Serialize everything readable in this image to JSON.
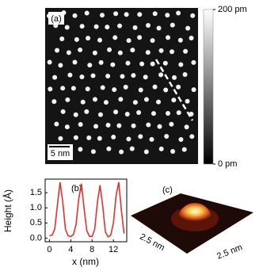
{
  "chart_data": [
    {
      "type": "image",
      "label": "(a)",
      "scale_bar": "5 nm",
      "clim": [
        0,
        200
      ],
      "colorbar_ticks": [
        {
          "value": 200,
          "label": "200 pm"
        },
        {
          "value": 0,
          "label": "0 pm"
        }
      ]
    },
    {
      "type": "line",
      "label": "(b)",
      "xlabel": "x (nm)",
      "ylabel": "Height (Å)",
      "color": "#e8302a",
      "x": [
        0,
        0.5,
        1,
        1.5,
        2,
        2.5,
        3,
        3.5,
        4,
        4.5,
        5,
        5.5,
        6,
        6.5,
        7,
        7.5,
        8,
        8.5,
        9,
        9.5,
        10,
        10.5,
        11,
        11.5,
        12,
        12.5,
        13,
        13.5,
        14
      ],
      "values": [
        0.08,
        0.1,
        0.3,
        1.1,
        1.85,
        1.2,
        0.3,
        0.08,
        0.05,
        0.12,
        0.45,
        1.3,
        1.8,
        1.0,
        0.25,
        0.06,
        0.05,
        0.3,
        1.2,
        1.75,
        1.05,
        0.2,
        0.04,
        0.1,
        0.5,
        1.4,
        1.85,
        0.9,
        0.15
      ],
      "xlim": [
        -0.8,
        14.5
      ],
      "ylim": [
        -0.12,
        1.95
      ],
      "xticks": [
        0,
        4,
        8,
        12
      ],
      "yticks": [
        {
          "value": 0,
          "label": "0.0"
        },
        0.5,
        {
          "value": 1,
          "label": "1.0"
        },
        1.5
      ]
    },
    {
      "type": "surface",
      "label": "(c)",
      "xlabel": "2.5 nm",
      "ylabel": "2.5 nm"
    }
  ]
}
